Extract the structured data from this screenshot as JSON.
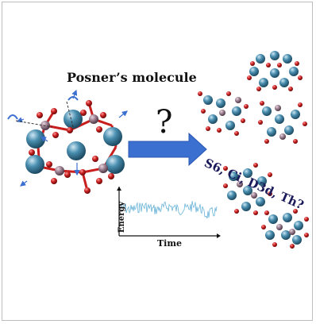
{
  "figure": {
    "title": "Posner’s molecule",
    "question": "?",
    "symmetries": "S6, Ci, D3d, Th?",
    "plot_ylabel": "Energy",
    "plot_xlabel": "Time"
  },
  "colors": {
    "calcium": "#4a8fb0",
    "oxygen": "#c81e1e",
    "phosphorus": "#9a7d8e",
    "arrow": "#3b6fd0",
    "trace": "#6ab4d8"
  }
}
